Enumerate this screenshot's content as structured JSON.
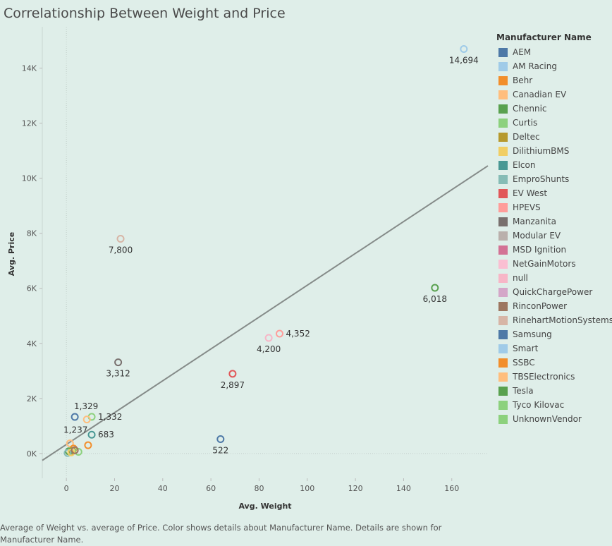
{
  "chart_data": {
    "type": "scatter",
    "title": "Correlationship Between Weight and Price",
    "xlabel": "Avg. Weight",
    "ylabel": "Avg. Price",
    "xlim": [
      -10,
      175
    ],
    "ylim": [
      -900,
      15500
    ],
    "x_ticks": [
      0,
      20,
      40,
      60,
      80,
      100,
      120,
      140,
      160
    ],
    "y_ticks": [
      0,
      2000,
      4000,
      6000,
      8000,
      10000,
      12000,
      14000
    ],
    "y_tick_labels": [
      "0K",
      "2K",
      "4K",
      "6K",
      "8K",
      "10K",
      "12K",
      "14K"
    ],
    "trend_line": {
      "x": [
        -10,
        175
      ],
      "y": [
        -250,
        10450
      ]
    },
    "legend_title": "Manufacturer Name",
    "legend_position": "right",
    "legend": [
      {
        "name": "AEM",
        "color": "#4e79a7"
      },
      {
        "name": "AM Racing",
        "color": "#a0cbe8"
      },
      {
        "name": "Behr",
        "color": "#f28e2b"
      },
      {
        "name": "Canadian EV",
        "color": "#ffbe7d"
      },
      {
        "name": "Chennic",
        "color": "#59a14f"
      },
      {
        "name": "Curtis",
        "color": "#8cd17d"
      },
      {
        "name": "Deltec",
        "color": "#b6992d"
      },
      {
        "name": "DilithiumBMS",
        "color": "#f1ce63"
      },
      {
        "name": "Elcon",
        "color": "#499894"
      },
      {
        "name": "EmproShunts",
        "color": "#86bcb6"
      },
      {
        "name": "EV West",
        "color": "#e15759"
      },
      {
        "name": "HPEVS",
        "color": "#ff9d9a"
      },
      {
        "name": "Manzanita",
        "color": "#79706e"
      },
      {
        "name": "Modular EV",
        "color": "#bab0ac"
      },
      {
        "name": "MSD Ignition",
        "color": "#d37295"
      },
      {
        "name": "NetGainMotors",
        "color": "#fabfd2"
      },
      {
        "name": "null",
        "color": "#f7b6c7"
      },
      {
        "name": "QuickChargePower",
        "color": "#d4a6c8"
      },
      {
        "name": "RinconPower",
        "color": "#9d7660"
      },
      {
        "name": "RinehartMotionSystems",
        "color": "#d7b5a6"
      },
      {
        "name": "Samsung",
        "color": "#4e79a7"
      },
      {
        "name": "Smart",
        "color": "#a0cbe8"
      },
      {
        "name": "SSBC",
        "color": "#f28e2b"
      },
      {
        "name": "TBSElectronics",
        "color": "#ffbe7d"
      },
      {
        "name": "Tesla",
        "color": "#59a14f"
      },
      {
        "name": "Tyco Kilovac",
        "color": "#8cd17d"
      },
      {
        "name": "UnknownVendor",
        "color": "#8cd17d"
      }
    ],
    "points": [
      {
        "x": 165,
        "y": 14694,
        "color": "#a0cbe8",
        "label": "14,694",
        "label_pos": "below"
      },
      {
        "x": 22.5,
        "y": 7800,
        "color": "#d7b5a6",
        "label": "7,800",
        "label_pos": "below"
      },
      {
        "x": 153,
        "y": 6018,
        "color": "#59a14f",
        "label": "6,018",
        "label_pos": "below"
      },
      {
        "x": 88.5,
        "y": 4352,
        "color": "#ff9d9a",
        "label": "4,352",
        "label_pos": "right"
      },
      {
        "x": 84,
        "y": 4200,
        "color": "#f7b6c7",
        "label": "4,200",
        "label_pos": "below"
      },
      {
        "x": 21.5,
        "y": 3312,
        "color": "#79706e",
        "label": "3,312",
        "label_pos": "below"
      },
      {
        "x": 69,
        "y": 2897,
        "color": "#e15759",
        "label": "2,897",
        "label_pos": "below"
      },
      {
        "x": 3.5,
        "y": 1329,
        "color": "#4e79a7",
        "label": "1,329",
        "label_pos": "above"
      },
      {
        "x": 10.5,
        "y": 1332,
        "color": "#8cd17d",
        "label": "1,332",
        "label_pos": "right"
      },
      {
        "x": 8.5,
        "y": 1237,
        "color": "#ffbe7d",
        "label": "1,237",
        "label_pos": "belowleft"
      },
      {
        "x": 10.5,
        "y": 683,
        "color": "#499894",
        "label": "683",
        "label_pos": "right"
      },
      {
        "x": 64,
        "y": 522,
        "color": "#4e79a7",
        "label": "522",
        "label_pos": "below"
      },
      {
        "x": 9,
        "y": 300,
        "color": "#f28e2b",
        "label": "",
        "label_pos": "none"
      },
      {
        "x": 1.5,
        "y": 370,
        "color": "#ffbe7d",
        "label": "",
        "label_pos": "none"
      },
      {
        "x": 3,
        "y": 180,
        "color": "#f28e2b",
        "label": "",
        "label_pos": "none"
      },
      {
        "x": 2.5,
        "y": 100,
        "color": "#b6992d",
        "label": "",
        "label_pos": "none"
      },
      {
        "x": 1,
        "y": 80,
        "color": "#59a14f",
        "label": "",
        "label_pos": "none"
      },
      {
        "x": 0.5,
        "y": 20,
        "color": "#86bcb6",
        "label": "",
        "label_pos": "none"
      },
      {
        "x": 5,
        "y": 60,
        "color": "#8cd17d",
        "label": "",
        "label_pos": "none"
      },
      {
        "x": 2,
        "y": 40,
        "color": "#f1ce63",
        "label": "",
        "label_pos": "none"
      },
      {
        "x": 3.5,
        "y": 120,
        "color": "#9d7660",
        "label": "",
        "label_pos": "none"
      }
    ]
  },
  "caption": "Average of Weight vs. average of Price.  Color shows details about Manufacturer Name.  Details are shown for Manufacturer Name."
}
